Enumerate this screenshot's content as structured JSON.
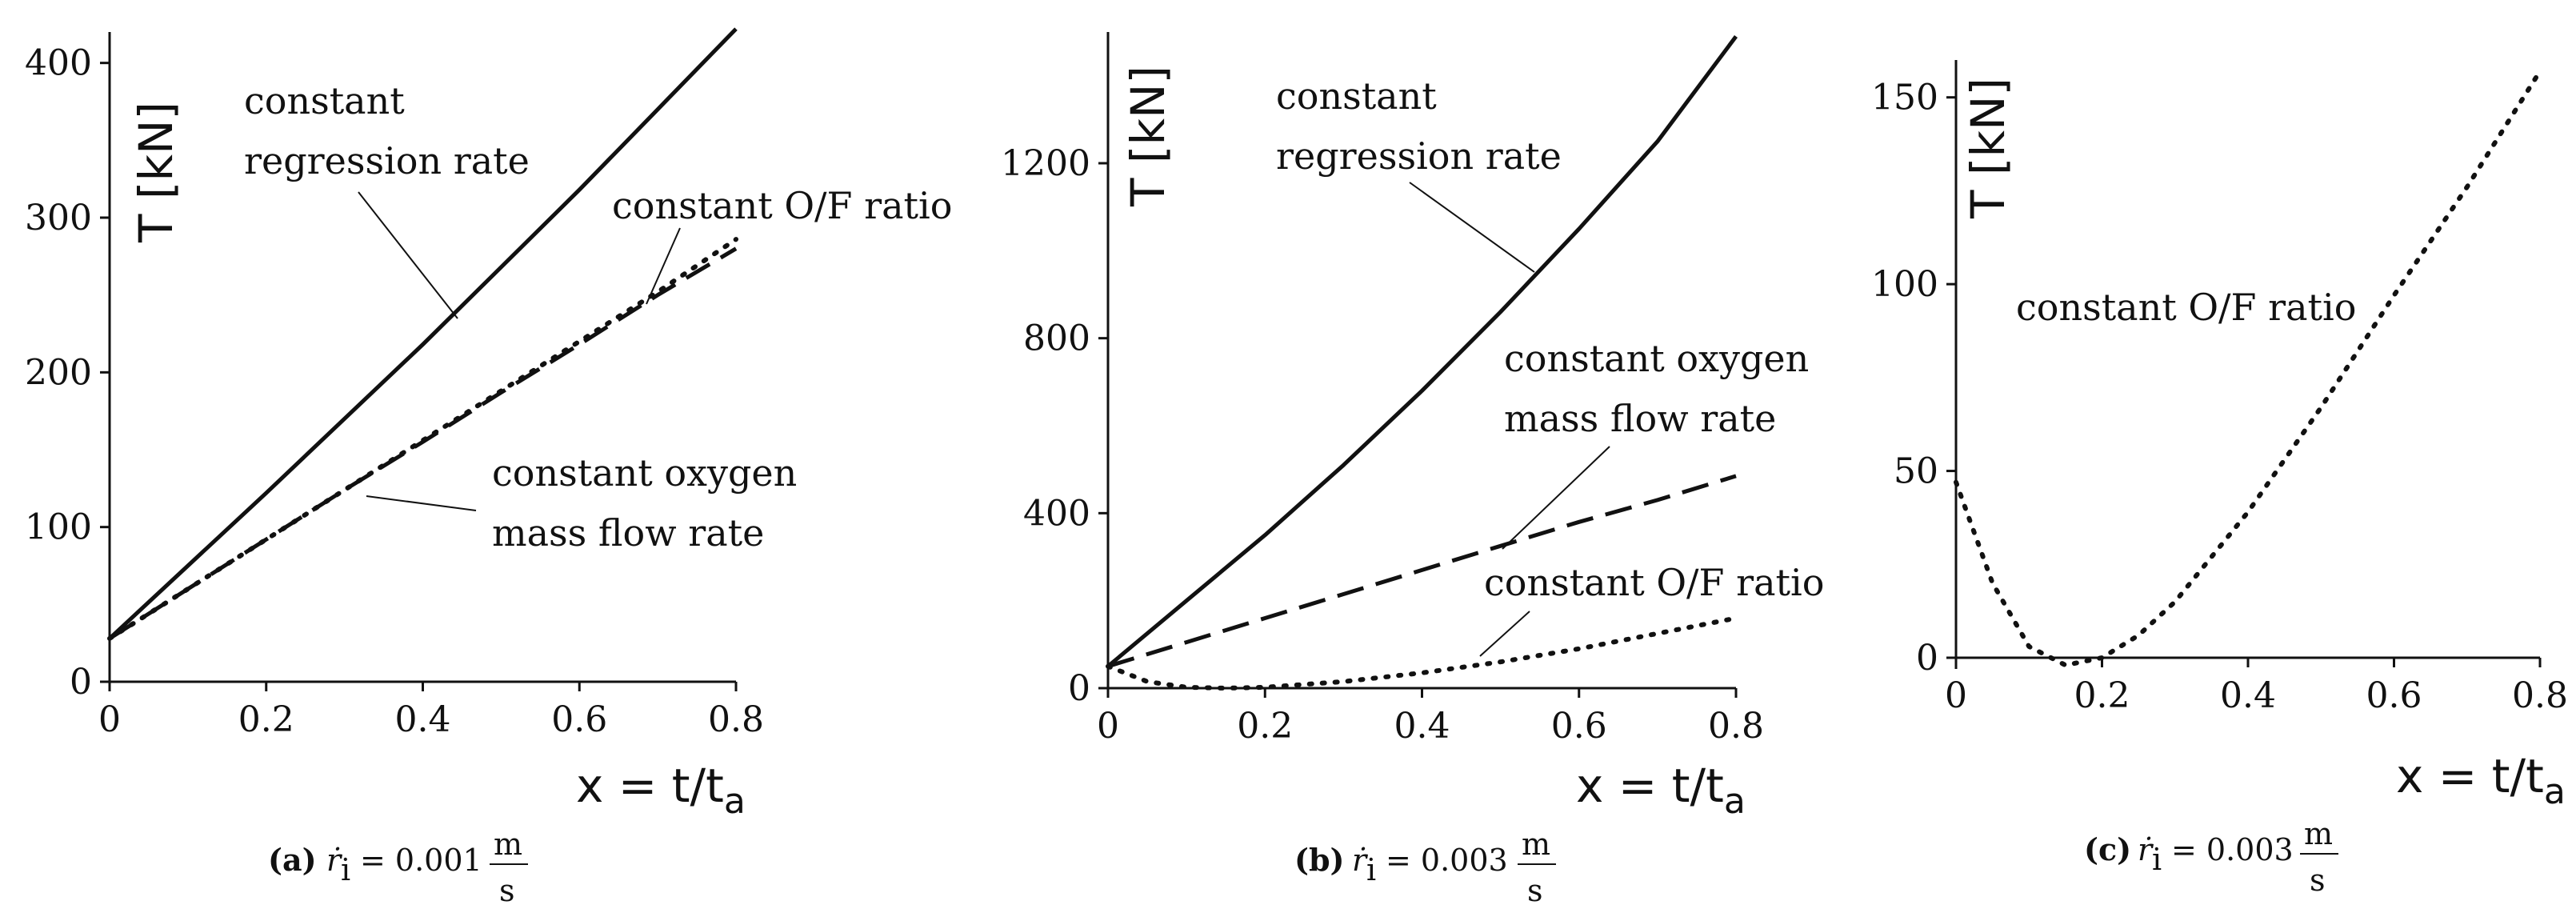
{
  "chart_data": [
    {
      "type": "line",
      "panel": "a",
      "ylabel": "T [kN]",
      "xlabel": "x = t/t",
      "xlabel_sub": "a",
      "xlim": [
        0,
        0.8
      ],
      "ylim": [
        0,
        420
      ],
      "xticks": [
        0,
        0.2,
        0.4,
        0.6,
        0.8
      ],
      "yticks": [
        0,
        100,
        200,
        300,
        400
      ],
      "series": [
        {
          "name": "constant regression rate",
          "style": "solid",
          "x": [
            0,
            0.1,
            0.2,
            0.3,
            0.4,
            0.5,
            0.6,
            0.7,
            0.8
          ],
          "y": [
            28,
            75,
            122,
            170,
            218,
            268,
            318,
            370,
            422
          ]
        },
        {
          "name": "constant oxygen mass flow rate",
          "style": "dashed",
          "x": [
            0,
            0.1,
            0.2,
            0.3,
            0.4,
            0.5,
            0.6,
            0.7,
            0.8
          ],
          "y": [
            28,
            60,
            92,
            124,
            155,
            187,
            218,
            250,
            280
          ]
        },
        {
          "name": "constant O/F ratio",
          "style": "dotted",
          "x": [
            0,
            0.1,
            0.2,
            0.3,
            0.4,
            0.5,
            0.6,
            0.7,
            0.8
          ],
          "y": [
            28,
            60,
            92,
            124,
            156,
            188,
            220,
            252,
            286
          ]
        }
      ],
      "annotations": [
        {
          "lines": [
            "constant",
            "regression rate"
          ]
        },
        {
          "lines": [
            "constant O/F ratio"
          ]
        },
        {
          "lines": [
            "constant oxygen",
            "mass flow rate"
          ]
        }
      ],
      "caption": {
        "label": "(a)",
        "symbol": "ṙ",
        "subscript": "i",
        "value": "= 0.001",
        "unit_num": "m",
        "unit_den": "s"
      }
    },
    {
      "type": "line",
      "panel": "b",
      "ylabel": "T [kN]",
      "xlabel": "x = t/t",
      "xlabel_sub": "a",
      "xlim": [
        0,
        0.8
      ],
      "ylim": [
        0,
        1500
      ],
      "xticks": [
        0,
        0.2,
        0.4,
        0.6,
        0.8
      ],
      "yticks": [
        0,
        400,
        800,
        1200
      ],
      "series": [
        {
          "name": "constant regression rate",
          "style": "solid",
          "x": [
            0,
            0.1,
            0.2,
            0.3,
            0.4,
            0.5,
            0.6,
            0.7,
            0.8
          ],
          "y": [
            50,
            200,
            350,
            510,
            680,
            860,
            1050,
            1250,
            1490
          ]
        },
        {
          "name": "constant oxygen mass flow rate",
          "style": "dashed",
          "x": [
            0,
            0.1,
            0.2,
            0.3,
            0.4,
            0.5,
            0.6,
            0.7,
            0.8
          ],
          "y": [
            50,
            105,
            160,
            215,
            270,
            325,
            380,
            430,
            485
          ]
        },
        {
          "name": "constant O/F ratio",
          "style": "dotted",
          "x": [
            0,
            0.05,
            0.1,
            0.15,
            0.2,
            0.3,
            0.4,
            0.5,
            0.6,
            0.7,
            0.8
          ],
          "y": [
            50,
            15,
            2,
            0,
            2,
            15,
            35,
            60,
            90,
            125,
            160
          ]
        }
      ],
      "annotations": [
        {
          "lines": [
            "constant",
            "regression rate"
          ]
        },
        {
          "lines": [
            "constant oxygen",
            "mass flow rate"
          ]
        },
        {
          "lines": [
            "constant O/F ratio"
          ]
        }
      ],
      "caption": {
        "label": "(b)",
        "symbol": "ṙ",
        "subscript": "i",
        "value": "= 0.003",
        "unit_num": "m",
        "unit_den": "s"
      }
    },
    {
      "type": "line",
      "panel": "c",
      "ylabel": "T [kN]",
      "xlabel": "x = t/t",
      "xlabel_sub": "a",
      "xlim": [
        0,
        0.8
      ],
      "ylim": [
        -3,
        160
      ],
      "xticks": [
        0,
        0.2,
        0.4,
        0.6,
        0.8
      ],
      "yticks": [
        0,
        50,
        100,
        150
      ],
      "series": [
        {
          "name": "constant O/F ratio",
          "style": "dotted",
          "x": [
            0,
            0.05,
            0.1,
            0.15,
            0.2,
            0.25,
            0.3,
            0.4,
            0.5,
            0.6,
            0.7,
            0.8
          ],
          "y": [
            47,
            20,
            3,
            -2,
            0,
            6,
            15,
            39,
            67,
            97,
            126,
            157
          ]
        }
      ],
      "annotations": [
        {
          "lines": [
            "constant O/F ratio"
          ]
        }
      ],
      "caption": {
        "label": "(c)",
        "symbol": "ṙ",
        "subscript": "i",
        "value": "= 0.003",
        "unit_num": "m",
        "unit_den": "s"
      }
    }
  ]
}
